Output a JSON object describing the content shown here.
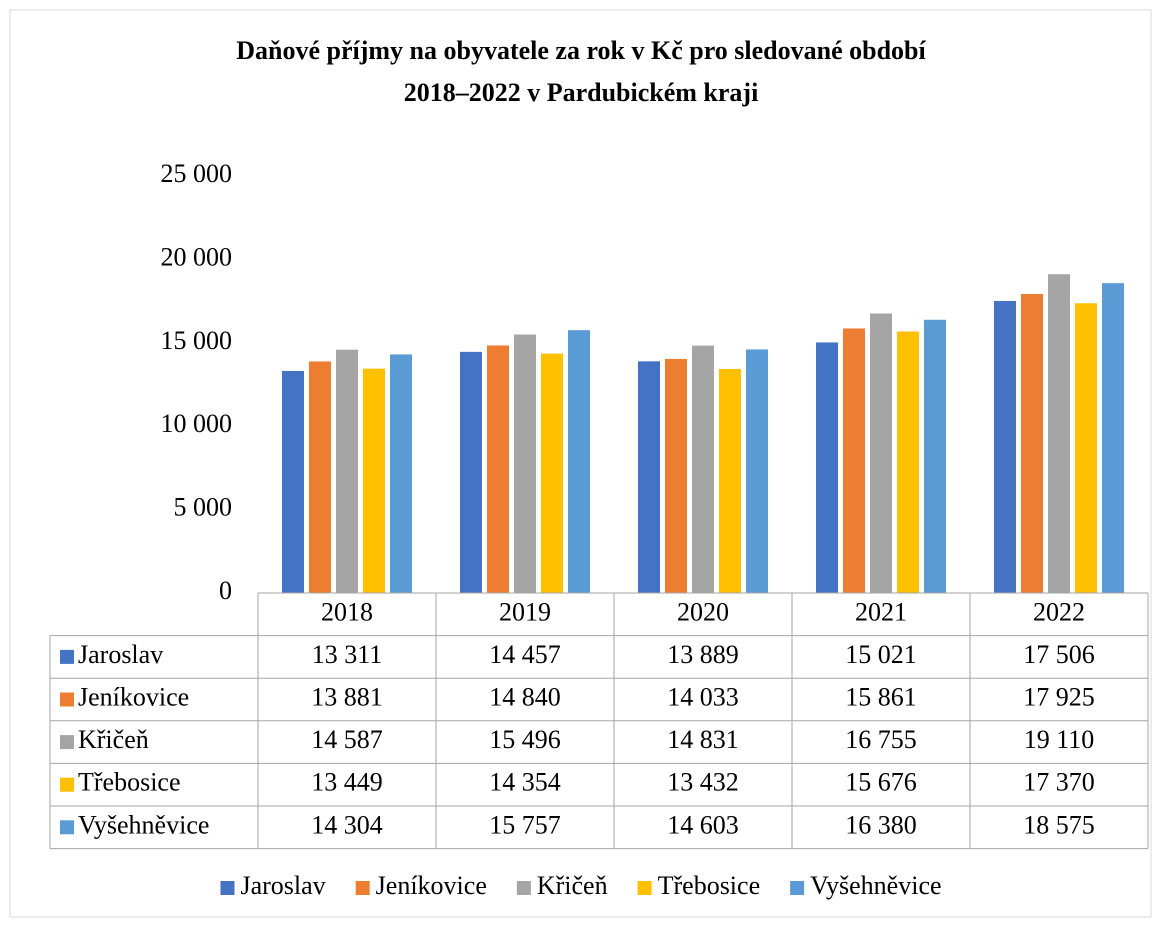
{
  "chart_data": {
    "type": "bar",
    "title": "Daňové příjmy na obyvatele za rok v Kč pro sledované období\n2018–2022 v Pardubickém kraji",
    "categories": [
      "2018",
      "2019",
      "2020",
      "2021",
      "2022"
    ],
    "series": [
      {
        "name": "Jaroslav",
        "color": "#4472c4",
        "values": [
          13311,
          14457,
          13889,
          15021,
          17506
        ],
        "value_labels": [
          "13 311",
          "14 457",
          "13 889",
          "15 021",
          "17 506"
        ]
      },
      {
        "name": "Jeníkovice",
        "color": "#ed7d31",
        "values": [
          13881,
          14840,
          14033,
          15861,
          17925
        ],
        "value_labels": [
          "13 881",
          "14 840",
          "14 033",
          "15 861",
          "17 925"
        ]
      },
      {
        "name": "Křičeň",
        "color": "#a5a5a5",
        "values": [
          14587,
          15496,
          14831,
          16755,
          19110
        ],
        "value_labels": [
          "14 587",
          "15 496",
          "14 831",
          "16 755",
          "19 110"
        ]
      },
      {
        "name": "Třebosice",
        "color": "#ffc000",
        "values": [
          13449,
          14354,
          13432,
          15676,
          17370
        ],
        "value_labels": [
          "13 449",
          "14 354",
          "13 432",
          "15 676",
          "17 370"
        ]
      },
      {
        "name": "Vyšehněvice",
        "color": "#5b9bd5",
        "values": [
          14304,
          15757,
          14603,
          16380,
          18575
        ],
        "value_labels": [
          "14 304",
          "15 757",
          "14 603",
          "16 380",
          "18 575"
        ]
      }
    ],
    "ylim": [
      0,
      25000
    ],
    "yticks": [
      0,
      {
        "value": 5000,
        "label": "5 000"
      },
      {
        "value": 10000,
        "label": "10 000"
      },
      {
        "value": 15000,
        "label": "15 000"
      },
      {
        "value": 20000,
        "label": "20 000"
      },
      {
        "value": 25000,
        "label": "25 000"
      }
    ],
    "grid": false,
    "legend": "bottom"
  }
}
